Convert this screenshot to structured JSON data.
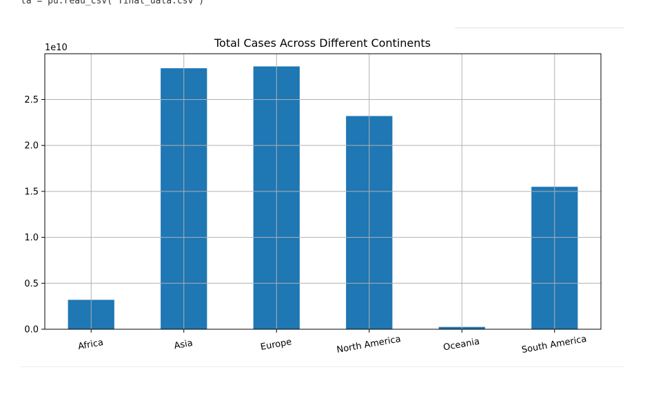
{
  "notebook": {
    "code_line": "ta = pu.reau_csv( Tinal_uata.csv )"
  },
  "chart_data": {
    "type": "bar",
    "title": "Total Cases Across Different Continents",
    "xlabel": "",
    "ylabel": "",
    "y_offset_label": "1e10",
    "categories": [
      "Africa",
      "Asia",
      "Europe",
      "North America",
      "Oceania",
      "South America"
    ],
    "values": [
      0.32,
      2.84,
      2.86,
      2.32,
      0.025,
      1.55
    ],
    "yticks": [
      0.0,
      0.5,
      1.0,
      1.5,
      2.0,
      2.5
    ],
    "ytick_labels": [
      "0.0",
      "0.5",
      "1.0",
      "1.5",
      "2.0",
      "2.5"
    ],
    "ylim": [
      0,
      2.998
    ],
    "grid": true,
    "bar_color": "#1f77b4"
  }
}
